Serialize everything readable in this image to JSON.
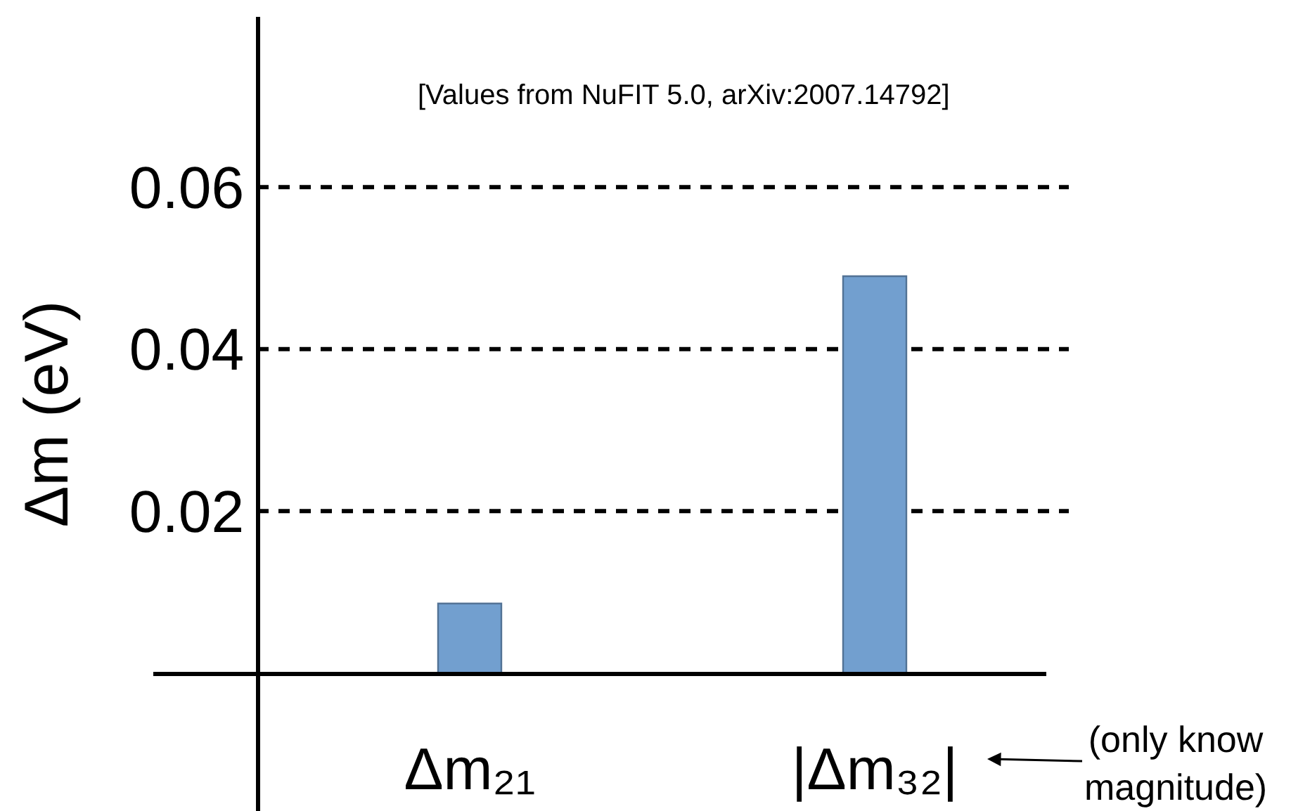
{
  "chart_data": {
    "type": "bar",
    "categories": [
      "Δm₂₁",
      "|Δm₃₂|"
    ],
    "values": [
      0.0086,
      0.049
    ],
    "color": "#729fcf",
    "ylabel": "Δm (eV)",
    "ylim": [
      -0.017,
      0.081
    ],
    "yticks": [
      0.02,
      0.04,
      0.06
    ],
    "grid": "y",
    "annotations": [
      "[Values from NuFIT 5.0, arXiv:2007.14792]",
      "(only know\nmagnitude)"
    ]
  }
}
